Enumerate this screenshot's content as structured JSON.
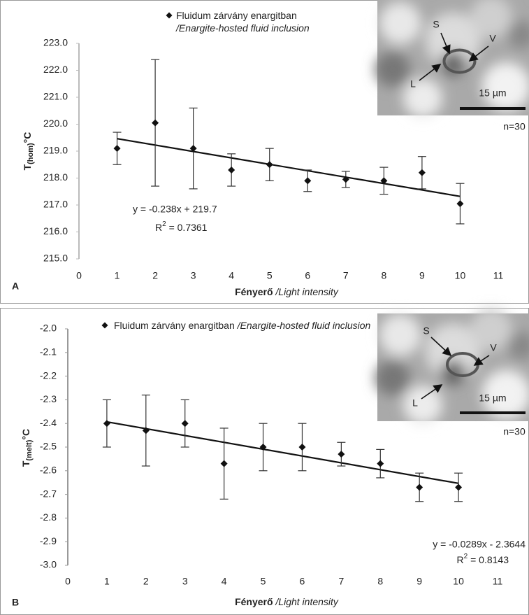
{
  "chart_data": [
    {
      "type": "scatter",
      "panel": "A",
      "xlabel": {
        "bold": "Fényerő",
        "italic": "/Light intensity"
      },
      "ylabel": {
        "main": "T",
        "sub": "(hom)",
        "unit": "°C"
      },
      "x": [
        1,
        2,
        3,
        4,
        5,
        6,
        7,
        8,
        9,
        10
      ],
      "series": [
        {
          "name": "Fluidum zárvány enargitban",
          "name_translation": "/Enargite-hosted fluid inclusion",
          "color": "#111111",
          "values": [
            219.1,
            220.05,
            219.1,
            218.3,
            218.5,
            217.9,
            217.95,
            217.9,
            218.2,
            217.05
          ],
          "errors": [
            0.6,
            2.35,
            1.5,
            0.6,
            0.6,
            0.4,
            0.3,
            0.5,
            0.6,
            0.75
          ]
        }
      ],
      "xlim": [
        0,
        11
      ],
      "xticks": [
        0,
        1,
        2,
        3,
        4,
        5,
        6,
        7,
        8,
        9,
        10,
        11
      ],
      "ylim": [
        215,
        223
      ],
      "yticks": [
        {
          "value": 215,
          "label": "215.0"
        },
        {
          "value": 216,
          "label": "216.0"
        },
        {
          "value": 217,
          "label": "217.0"
        },
        {
          "value": 218,
          "label": "218.0"
        },
        {
          "value": 219,
          "label": "219.0"
        },
        {
          "value": 220,
          "label": "220.0"
        },
        {
          "value": 221,
          "label": "221.0"
        },
        {
          "value": 222,
          "label": "222.0"
        },
        {
          "value": 223,
          "label": "223.0"
        }
      ],
      "trendline": {
        "slope": -0.238,
        "intercept": 219.7,
        "equation": "y = -0.238x + 219.7",
        "r2_prefix": "R",
        "r2_sup": "2",
        "r2_text": " = 0.7361"
      },
      "annotations": {
        "n": "n=30",
        "S": "S",
        "V": "V",
        "L": "L",
        "scale": "15 µm"
      }
    },
    {
      "type": "scatter",
      "panel": "B",
      "xlabel": {
        "bold": "Fényerő",
        "italic": "/Light intensity"
      },
      "ylabel": {
        "main": "T",
        "sub": "(melt)",
        "unit": "°C"
      },
      "x": [
        1,
        2,
        3,
        4,
        5,
        6,
        7,
        8,
        9,
        10
      ],
      "series": [
        {
          "name": "Fluidum zárvány enargitban",
          "name_translation": "/Enargite-hosted fluid inclusion",
          "color": "#111111",
          "values": [
            -2.4,
            -2.43,
            -2.4,
            -2.57,
            -2.5,
            -2.5,
            -2.53,
            -2.57,
            -2.67,
            -2.67
          ],
          "errors": [
            0.1,
            0.15,
            0.1,
            0.15,
            0.1,
            0.1,
            0.05,
            0.06,
            0.06,
            0.06
          ]
        }
      ],
      "xlim": [
        0,
        11
      ],
      "xticks": [
        0,
        1,
        2,
        3,
        4,
        5,
        6,
        7,
        8,
        9,
        10,
        11
      ],
      "ylim": [
        -3,
        -2
      ],
      "yticks": [
        {
          "value": -3,
          "label": "-3.0"
        },
        -2.9,
        -2.8,
        -2.7,
        -2.6,
        -2.5,
        -2.4,
        -2.3,
        -2.2,
        -2.1,
        {
          "value": -2,
          "label": "-2.0"
        }
      ],
      "trendline": {
        "slope": -0.0289,
        "intercept": -2.3644,
        "equation": "y = -0.0289x - 2.3644",
        "r2_prefix": "R",
        "r2_sup": "2",
        "r2_text": " = 0.8143"
      },
      "annotations": {
        "n": "n=30",
        "S": "S",
        "V": "V",
        "L": "L",
        "scale": "15 µm"
      }
    }
  ]
}
